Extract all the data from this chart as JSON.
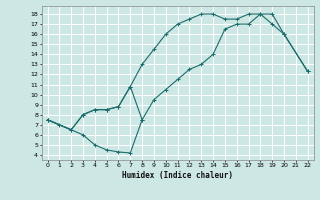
{
  "xlabel": "Humidex (Indice chaleur)",
  "bg_color": "#cde8e4",
  "grid_color": "#ffffff",
  "line_color": "#1a6b6b",
  "xlim": [
    -0.5,
    22.5
  ],
  "ylim": [
    3.5,
    18.8
  ],
  "xticks": [
    0,
    1,
    2,
    3,
    4,
    5,
    6,
    7,
    8,
    9,
    10,
    11,
    12,
    13,
    14,
    15,
    16,
    17,
    18,
    19,
    20,
    21,
    22
  ],
  "yticks": [
    4,
    5,
    6,
    7,
    8,
    9,
    10,
    11,
    12,
    13,
    14,
    15,
    16,
    17,
    18
  ],
  "line1_x": [
    0,
    1,
    3,
    4,
    5,
    6,
    7,
    8
  ],
  "line1_y": [
    7.5,
    7.0,
    6.0,
    5.0,
    4.5,
    4.3,
    4.2,
    7.5
  ],
  "line2_x": [
    0,
    2,
    3,
    4,
    5,
    6,
    7,
    8,
    9,
    10,
    11,
    12,
    13,
    14,
    15,
    16,
    17,
    18,
    19,
    20,
    22
  ],
  "line2_y": [
    7.5,
    6.5,
    8.0,
    8.5,
    8.5,
    8.8,
    10.8,
    13.0,
    14.5,
    16.0,
    17.0,
    17.5,
    18.0,
    18.0,
    17.5,
    17.5,
    18.0,
    18.0,
    17.0,
    16.0,
    12.3
  ],
  "line3_x": [
    0,
    2,
    3,
    4,
    5,
    6,
    7,
    8,
    9,
    10,
    11,
    12,
    13,
    14,
    15,
    16,
    17,
    18,
    19,
    20,
    22
  ],
  "line3_y": [
    7.5,
    6.5,
    8.0,
    8.5,
    8.5,
    8.8,
    10.8,
    7.5,
    9.5,
    10.5,
    11.5,
    12.5,
    13.0,
    14.0,
    16.5,
    17.0,
    17.0,
    18.0,
    18.0,
    16.0,
    12.3
  ]
}
